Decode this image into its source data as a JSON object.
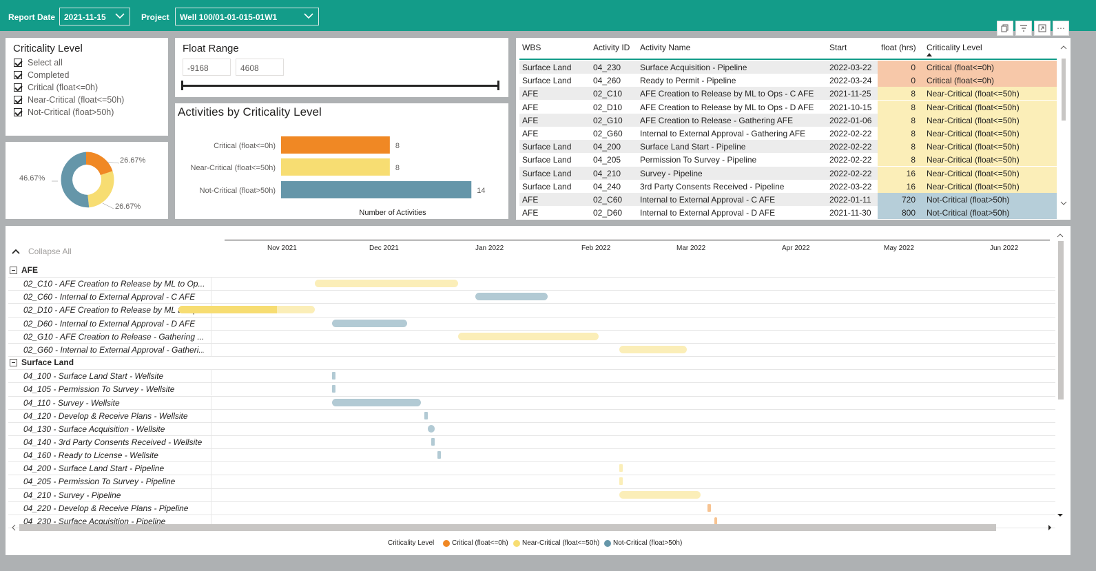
{
  "header": {
    "report_date_label": "Report Date",
    "report_date_value": "2021-11-15",
    "project_label": "Project",
    "project_value": "Well 100/01-01-015-01W1"
  },
  "colors": {
    "teal": "#139c89",
    "critical": "#f08824",
    "near_critical": "#f7dd72",
    "not_critical": "#6596a9",
    "critical_cell": "#f7c8a9",
    "near_cell": "#fbeeb8",
    "not_cell": "#b6ced9"
  },
  "slicer": {
    "title": "Criticality Level",
    "options": [
      "Select all",
      "Completed",
      "Critical (float<=0h)",
      "Near-Critical (float<=50h)",
      "Not-Critical (float>50h)"
    ]
  },
  "donut": {
    "labels": [
      "26.67%",
      "26.67%",
      "46.67%"
    ]
  },
  "float_range": {
    "title": "Float Range",
    "min": "-9168",
    "max": "4608"
  },
  "chart_data": {
    "type": "bar",
    "title": "Activities by Criticality Level",
    "categories": [
      "Critical (float<=0h)",
      "Near-Critical (float<=50h)",
      "Not-Critical (float>50h)"
    ],
    "values": [
      8,
      8,
      14
    ],
    "xlabel": "Number of Activities",
    "xlim": [
      0,
      15
    ]
  },
  "table": {
    "headers": [
      "WBS",
      "Activity ID",
      "Activity Name",
      "Start",
      "float (hrs)",
      "Criticality Level"
    ],
    "rows": [
      {
        "wbs": "Surface Land",
        "id": "04_230",
        "name": "Surface Acquisition - Pipeline",
        "start": "2022-03-22",
        "float": "0",
        "level": "Critical (float<=0h)",
        "kind": "critical"
      },
      {
        "wbs": "Surface Land",
        "id": "04_260",
        "name": "Ready to Permit - Pipeline",
        "start": "2022-03-24",
        "float": "0",
        "level": "Critical (float<=0h)",
        "kind": "critical"
      },
      {
        "wbs": "AFE",
        "id": "02_C10",
        "name": "AFE Creation to Release by ML to Ops - C AFE",
        "start": "2021-11-25",
        "float": "8",
        "level": "Near-Critical (float<=50h)",
        "kind": "near"
      },
      {
        "wbs": "AFE",
        "id": "02_D10",
        "name": "AFE Creation to Release by ML to Ops - D AFE",
        "start": "2021-10-15",
        "float": "8",
        "level": "Near-Critical (float<=50h)",
        "kind": "near"
      },
      {
        "wbs": "AFE",
        "id": "02_G10",
        "name": "AFE Creation to Release - Gathering AFE",
        "start": "2022-01-06",
        "float": "8",
        "level": "Near-Critical (float<=50h)",
        "kind": "near"
      },
      {
        "wbs": "AFE",
        "id": "02_G60",
        "name": "Internal to External Approval - Gathering AFE",
        "start": "2022-02-22",
        "float": "8",
        "level": "Near-Critical (float<=50h)",
        "kind": "near"
      },
      {
        "wbs": "Surface Land",
        "id": "04_200",
        "name": "Surface Land Start - Pipeline",
        "start": "2022-02-22",
        "float": "8",
        "level": "Near-Critical (float<=50h)",
        "kind": "near"
      },
      {
        "wbs": "Surface Land",
        "id": "04_205",
        "name": "Permission To Survey - Pipeline",
        "start": "2022-02-22",
        "float": "8",
        "level": "Near-Critical (float<=50h)",
        "kind": "near"
      },
      {
        "wbs": "Surface Land",
        "id": "04_210",
        "name": "Survey - Pipeline",
        "start": "2022-02-22",
        "float": "16",
        "level": "Near-Critical (float<=50h)",
        "kind": "near"
      },
      {
        "wbs": "Surface Land",
        "id": "04_240",
        "name": "3rd Party Consents Received - Pipeline",
        "start": "2022-03-22",
        "float": "16",
        "level": "Near-Critical (float<=50h)",
        "kind": "near"
      },
      {
        "wbs": "AFE",
        "id": "02_C60",
        "name": "Internal to External Approval - C AFE",
        "start": "2022-01-11",
        "float": "720",
        "level": "Not-Critical (float>50h)",
        "kind": "not"
      },
      {
        "wbs": "AFE",
        "id": "02_D60",
        "name": "Internal to External Approval - D AFE",
        "start": "2021-11-30",
        "float": "800",
        "level": "Not-Critical (float>50h)",
        "kind": "not"
      }
    ]
  },
  "gantt": {
    "collapse_label": "Collapse All",
    "months": [
      "Nov 2021",
      "Dec 2021",
      "Jan 2022",
      "Feb 2022",
      "Mar 2022",
      "Apr 2022",
      "May 2022",
      "Jun 2022"
    ],
    "groups": [
      {
        "name": "AFE",
        "rows": [
          {
            "label": "02_C10 - AFE Creation to Release by ML to Op...",
            "start": "2021-11-25",
            "end": "2022-01-06",
            "kind": "near"
          },
          {
            "label": "02_C60 - Internal to External Approval - C AFE",
            "start": "2022-01-11",
            "end": "2022-02-01",
            "kind": "not"
          },
          {
            "label": "02_D10 - AFE Creation to Release by ML to Op...",
            "start": "2021-10-15",
            "end": "2021-11-25",
            "kind": "near-progress",
            "progress": 0.72
          },
          {
            "label": "02_D60 - Internal to External Approval - D AFE",
            "start": "2021-11-30",
            "end": "2021-12-22",
            "kind": "not"
          },
          {
            "label": "02_G10 - AFE Creation to Release - Gathering ...",
            "start": "2022-01-06",
            "end": "2022-02-16",
            "kind": "near"
          },
          {
            "label": "02_G60 - Internal to External Approval - Gatheri...",
            "start": "2022-02-22",
            "end": "2022-03-14",
            "kind": "near"
          }
        ]
      },
      {
        "name": "Surface Land",
        "rows": [
          {
            "label": "04_100 - Surface Land Start - Wellsite",
            "start": "2021-11-30",
            "end": "2021-11-30",
            "kind": "not"
          },
          {
            "label": "04_105 - Permission To Survey - Wellsite",
            "start": "2021-11-30",
            "end": "2021-11-30",
            "kind": "not"
          },
          {
            "label": "04_110 - Survey - Wellsite",
            "start": "2021-11-30",
            "end": "2021-12-26",
            "kind": "not"
          },
          {
            "label": "04_120 - Develop & Receive Plans - Wellsite",
            "start": "2021-12-27",
            "end": "2021-12-27",
            "kind": "not"
          },
          {
            "label": "04_130 - Surface Acquisition - Wellsite",
            "start": "2021-12-28",
            "end": "2021-12-30",
            "kind": "not"
          },
          {
            "label": "04_140 - 3rd Party Consents Received - Wellsite",
            "start": "2021-12-29",
            "end": "2021-12-29",
            "kind": "not"
          },
          {
            "label": "04_160 - Ready to License - Wellsite",
            "start": "2021-12-31",
            "end": "2021-12-31",
            "kind": "not"
          },
          {
            "label": "04_200 - Surface Land Start - Pipeline",
            "start": "2022-02-22",
            "end": "2022-02-22",
            "kind": "near"
          },
          {
            "label": "04_205 - Permission To Survey - Pipeline",
            "start": "2022-02-22",
            "end": "2022-02-22",
            "kind": "near"
          },
          {
            "label": "04_210 - Survey - Pipeline",
            "start": "2022-02-22",
            "end": "2022-03-18",
            "kind": "near"
          },
          {
            "label": "04_220 - Develop & Receive Plans - Pipeline",
            "start": "2022-03-20",
            "end": "2022-03-20",
            "kind": "critical"
          },
          {
            "label": "04_230 - Surface Acquisition - Pipeline",
            "start": "2022-03-22",
            "end": "2022-03-23",
            "kind": "critical"
          }
        ]
      }
    ]
  },
  "legend": {
    "title": "Criticality Level",
    "items": [
      "Critical (float<=0h)",
      "Near-Critical (float<=50h)",
      "Not-Critical (float>50h)"
    ]
  }
}
